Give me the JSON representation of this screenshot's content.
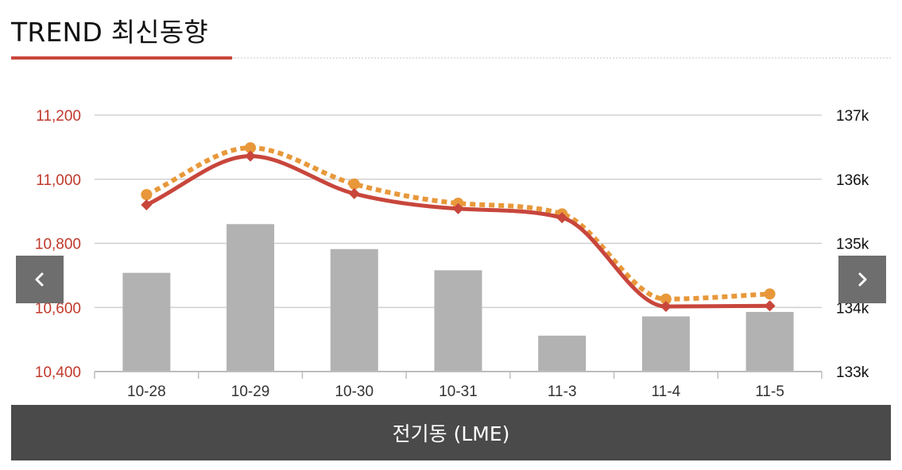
{
  "header": {
    "title": "TREND 최신동향"
  },
  "navigation": {
    "prev_icon": "chevron-left-icon",
    "next_icon": "chevron-right-icon"
  },
  "caption": {
    "label": "전기동 (LME)"
  },
  "colors": {
    "left_axis_text": "#c0392b",
    "right_axis_text": "#111111",
    "bar": "#b2b2b2",
    "line_solid": "#c8463c",
    "line_dotted": "#e8983a",
    "grid": "#c8c8c8",
    "caption_bg": "#4a4a4a",
    "nav_bg": "#6e6e6e",
    "accent_underline": "#c8463c"
  },
  "chart_data": {
    "type": "bar",
    "categories": [
      "10-28",
      "10-29",
      "10-30",
      "10-31",
      "11-3",
      "11-4",
      "11-5"
    ],
    "y_left": {
      "ticks": [
        "10,400",
        "10,600",
        "10,800",
        "11,000",
        "11,200"
      ],
      "range": [
        10400,
        11200
      ]
    },
    "y_right": {
      "ticks": [
        "133k",
        "134k",
        "135k",
        "136k",
        "137k"
      ],
      "range": [
        133000,
        137000
      ]
    },
    "series": [
      {
        "type": "bar",
        "axis": "right",
        "values": [
          134540,
          135300,
          134910,
          134580,
          133560,
          133860,
          133930
        ]
      },
      {
        "type": "line",
        "axis": "left",
        "style": "dotted",
        "marker": "circle",
        "values": [
          10952,
          11098,
          10985,
          10925,
          10892,
          10626,
          10642
        ]
      },
      {
        "type": "line",
        "axis": "left",
        "style": "solid",
        "marker": "diamond",
        "values": [
          10920,
          11072,
          10955,
          10908,
          10880,
          10603,
          10605
        ]
      }
    ],
    "grid": true,
    "legend": "none"
  }
}
